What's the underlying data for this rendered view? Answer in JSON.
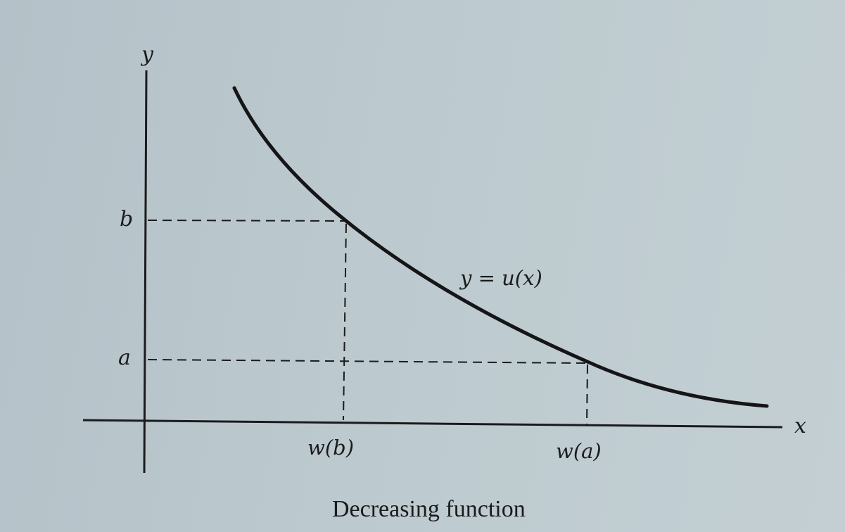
{
  "figure": {
    "caption": "Decreasing function",
    "axes": {
      "x_label": "x",
      "y_label": "y"
    },
    "y_ticks": {
      "b": "b",
      "a": "a"
    },
    "x_ticks": {
      "w_b": "w(b)",
      "w_a": "w(a)"
    },
    "curve_label": "y = u(x)"
  }
}
